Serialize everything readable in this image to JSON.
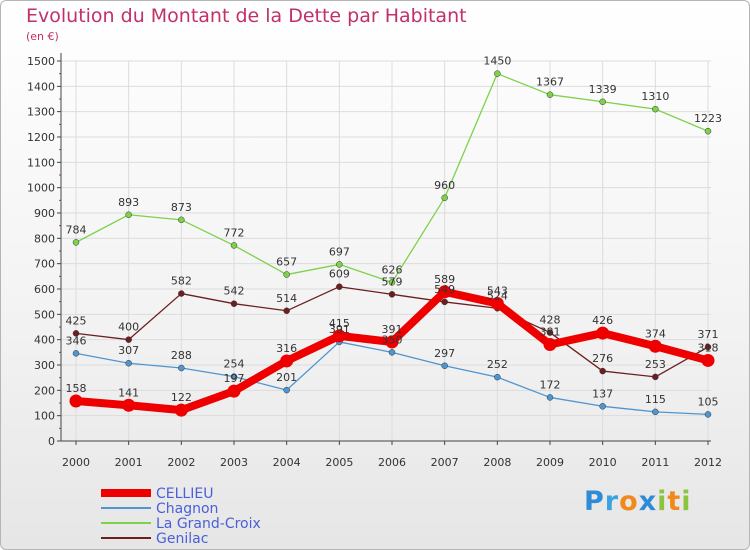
{
  "title": "Evolution du Montant de la Dette par Habitant",
  "subtitle": "(en €)",
  "colors": {
    "title": "#c0306a",
    "grid": "#dcdcdc",
    "series": [
      "#ee0000",
      "#4f95d0",
      "#7dd24a",
      "#6b1f20"
    ]
  },
  "logo": {
    "text": "Proxiti",
    "letters": [
      "P",
      "r",
      "o",
      "x",
      "i",
      "t",
      "i"
    ],
    "letter_colors": [
      "#2e8bd8",
      "#3aa3e0",
      "#f08a1c",
      "#2e8bd8",
      "#8bc53f",
      "#f08a1c",
      "#8bc53f"
    ]
  },
  "chart_data": {
    "type": "line",
    "title": "Evolution du Montant de la Dette par Habitant",
    "ylabel": "(en €)",
    "ylim": [
      0,
      1500
    ],
    "yticks": [
      0,
      100,
      200,
      300,
      400,
      500,
      600,
      700,
      800,
      900,
      1000,
      1100,
      1200,
      1300,
      1400,
      1500
    ],
    "grid": true,
    "legend_position": "bottom-left",
    "categories": [
      "2000",
      "2001",
      "2002",
      "2003",
      "2004",
      "2005",
      "2006",
      "2007",
      "2008",
      "2009",
      "2010",
      "2011",
      "2012"
    ],
    "series": [
      {
        "name": "CELLIEU",
        "color": "#ee0000",
        "values": [
          158,
          141,
          122,
          197,
          316,
          415,
          391,
          589,
          543,
          381,
          426,
          374,
          318
        ],
        "labels": [
          "158",
          "141",
          "122",
          "197",
          "316",
          "415",
          "391",
          "589",
          "543",
          "381",
          "426",
          "374",
          "318"
        ]
      },
      {
        "name": "Chagnon",
        "color": "#4f95d0",
        "values": [
          346,
          307,
          288,
          254,
          201,
          391,
          350,
          297,
          252,
          172,
          137,
          115,
          105
        ],
        "labels": [
          "346",
          "307",
          "288",
          "254",
          "201",
          "391",
          "350",
          "297",
          "252",
          "172",
          "137",
          "115",
          "105"
        ]
      },
      {
        "name": "La Grand-Croix",
        "color": "#7dd24a",
        "values": [
          784,
          893,
          873,
          772,
          657,
          697,
          626,
          960,
          1450,
          1367,
          1339,
          1310,
          1223
        ],
        "labels": [
          "784",
          "893",
          "873",
          "772",
          "657",
          "697",
          "626",
          "960",
          "1450",
          "1367",
          "1339",
          "1310",
          "1223"
        ]
      },
      {
        "name": "Genilac",
        "color": "#6b1f20",
        "values": [
          425,
          400,
          582,
          542,
          514,
          609,
          579,
          549,
          524,
          428,
          276,
          253,
          371
        ],
        "labels": [
          "425",
          "400",
          "582",
          "542",
          "514",
          "609",
          "579",
          "549",
          "524",
          "428",
          "276",
          "253",
          "371"
        ]
      }
    ]
  }
}
